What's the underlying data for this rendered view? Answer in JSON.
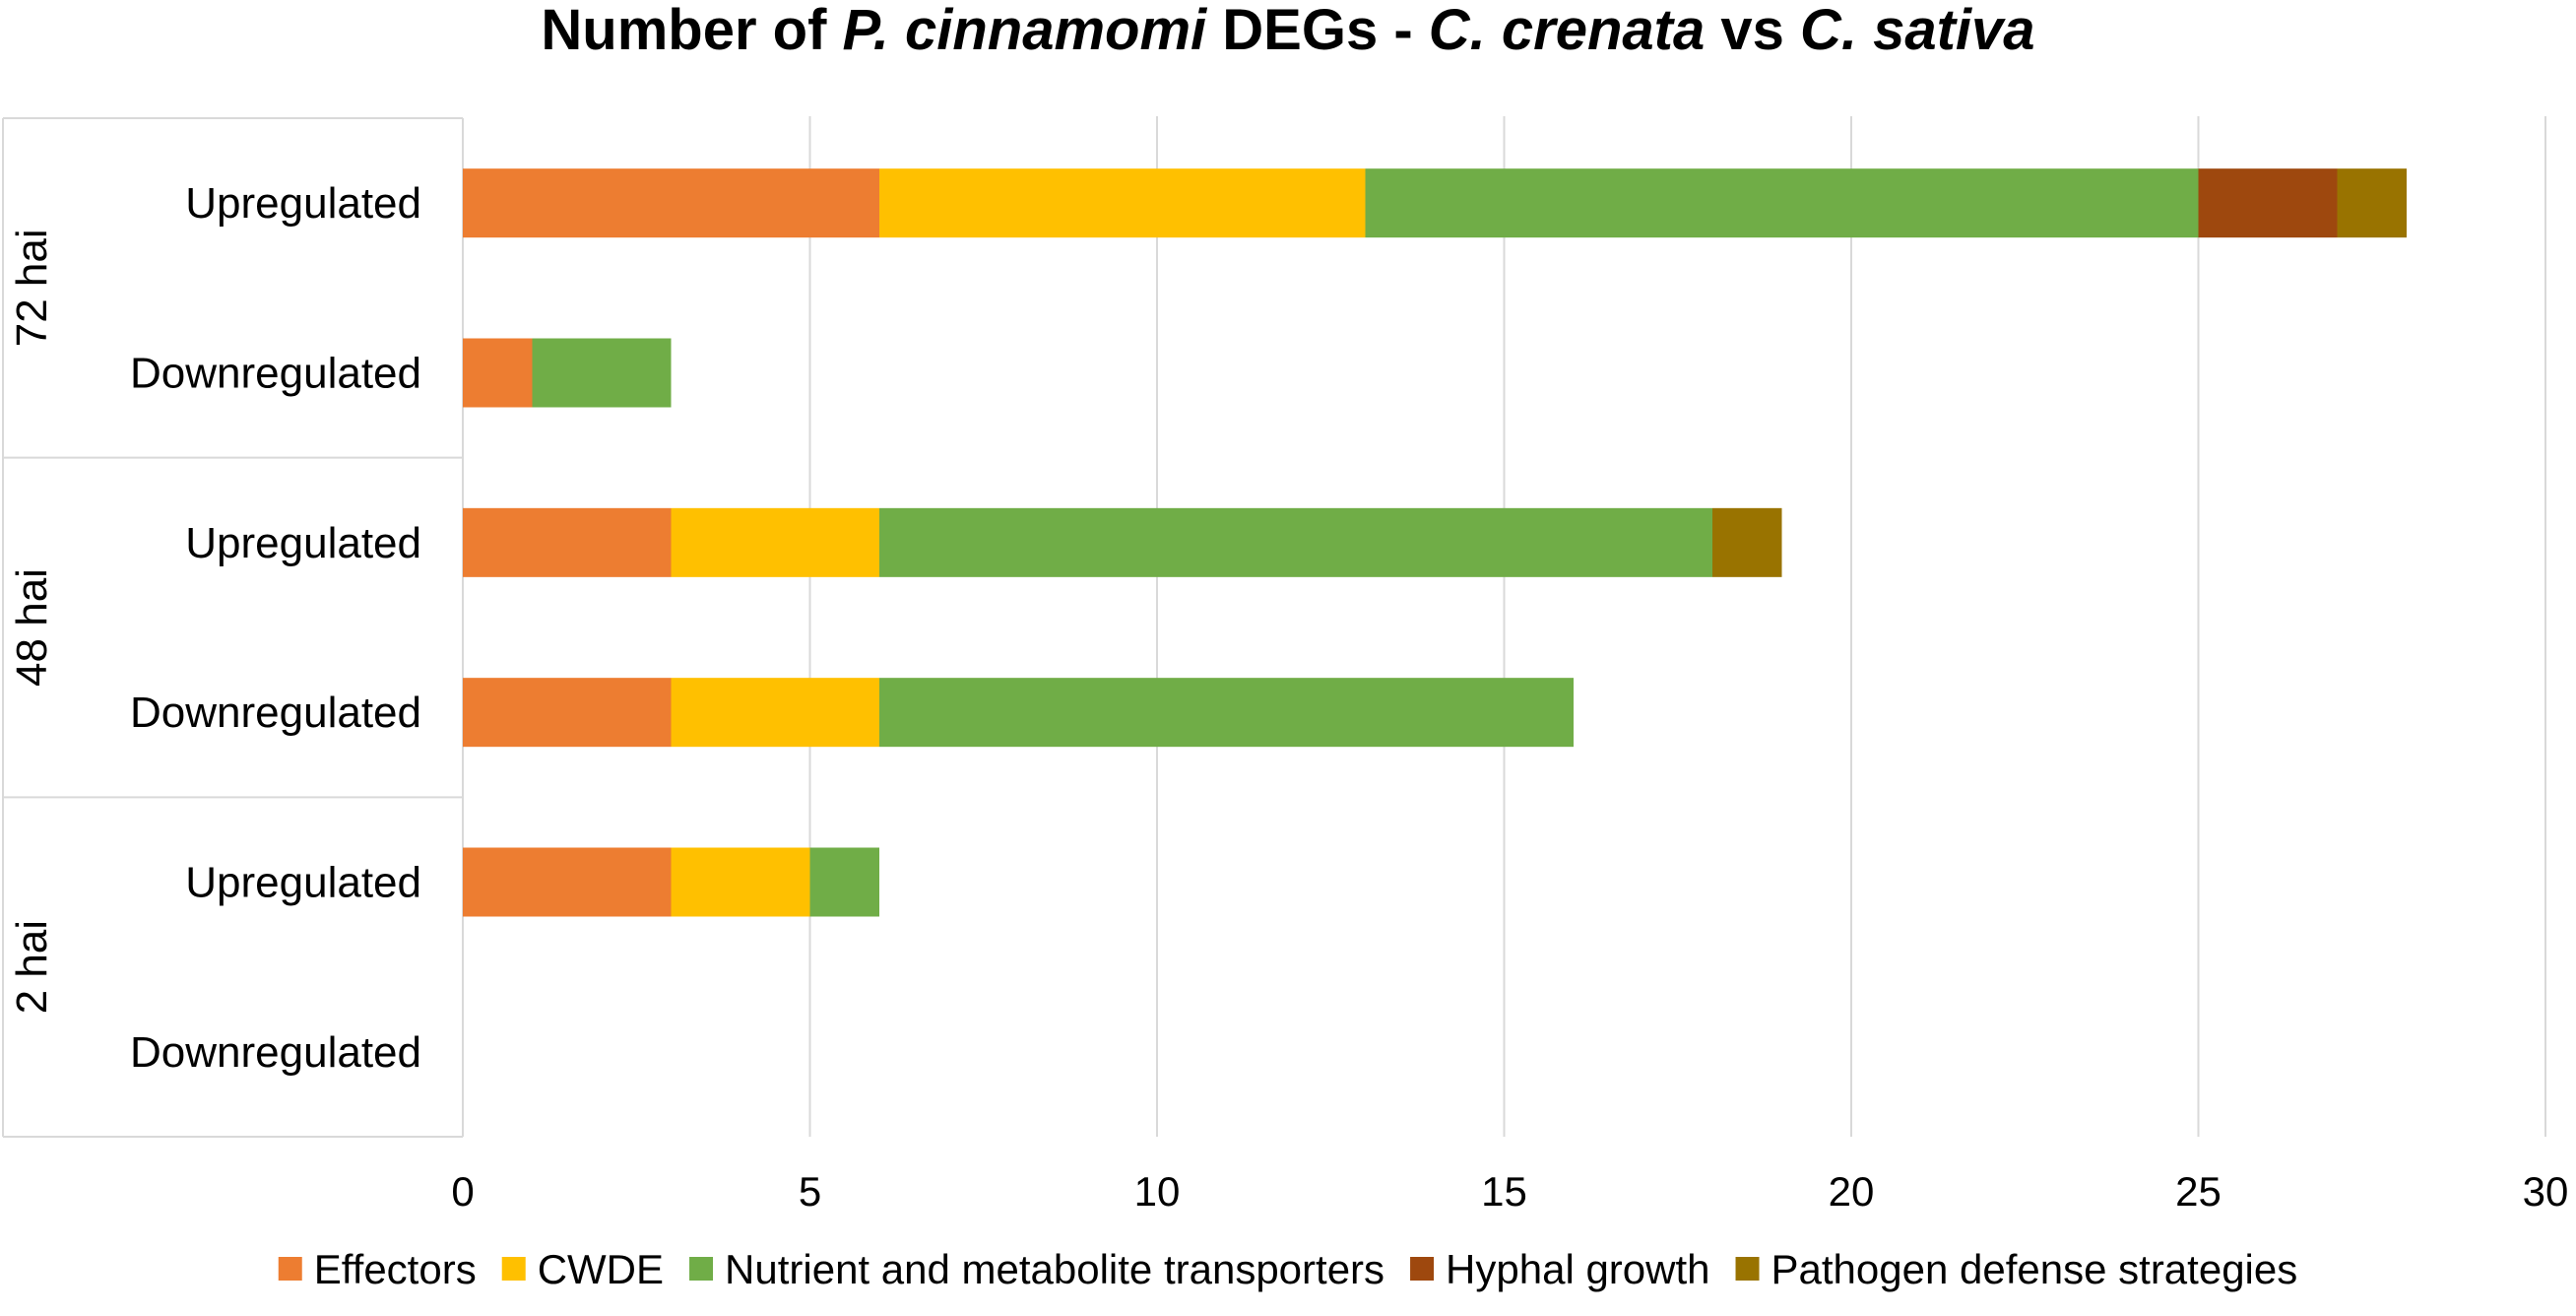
{
  "chart_data": {
    "type": "bar",
    "orientation": "horizontal",
    "stacked": true,
    "title": {
      "parts": [
        {
          "text": "Number of ",
          "italic": false
        },
        {
          "text": "P. cinnamomi",
          "italic": true
        },
        {
          "text": " DEGs - ",
          "italic": false
        },
        {
          "text": "C. crenata",
          "italic": true
        },
        {
          "text": " vs ",
          "italic": false
        },
        {
          "text": "C. sativa",
          "italic": true
        }
      ]
    },
    "xlabel": "",
    "ylabel": "",
    "xlim": [
      0,
      30
    ],
    "xticks": [
      0,
      5,
      10,
      15,
      20,
      25,
      30
    ],
    "grid": true,
    "legend_position": "bottom",
    "groups": [
      {
        "name": "72 hai",
        "categories": [
          "Upregulated",
          "Downregulated"
        ]
      },
      {
        "name": "48 hai",
        "categories": [
          "Upregulated",
          "Downregulated"
        ]
      },
      {
        "name": "2 hai",
        "categories": [
          "Upregulated",
          "Downregulated"
        ]
      }
    ],
    "series": [
      {
        "name": "Effectors",
        "color": "#ED7D31",
        "values": [
          6,
          1,
          3,
          3,
          3,
          0
        ]
      },
      {
        "name": "CWDE",
        "color": "#FFC000",
        "values": [
          7,
          0,
          3,
          3,
          2,
          0
        ]
      },
      {
        "name": "Nutrient and metabolite transporters",
        "color": "#70AD47",
        "values": [
          12,
          2,
          12,
          10,
          1,
          0
        ]
      },
      {
        "name": "Hyphal growth",
        "color": "#9E480E",
        "values": [
          2,
          0,
          0,
          0,
          0,
          0
        ]
      },
      {
        "name": "Pathogen defense strategies",
        "color": "#997300",
        "values": [
          1,
          0,
          1,
          0,
          0,
          0
        ]
      }
    ]
  }
}
